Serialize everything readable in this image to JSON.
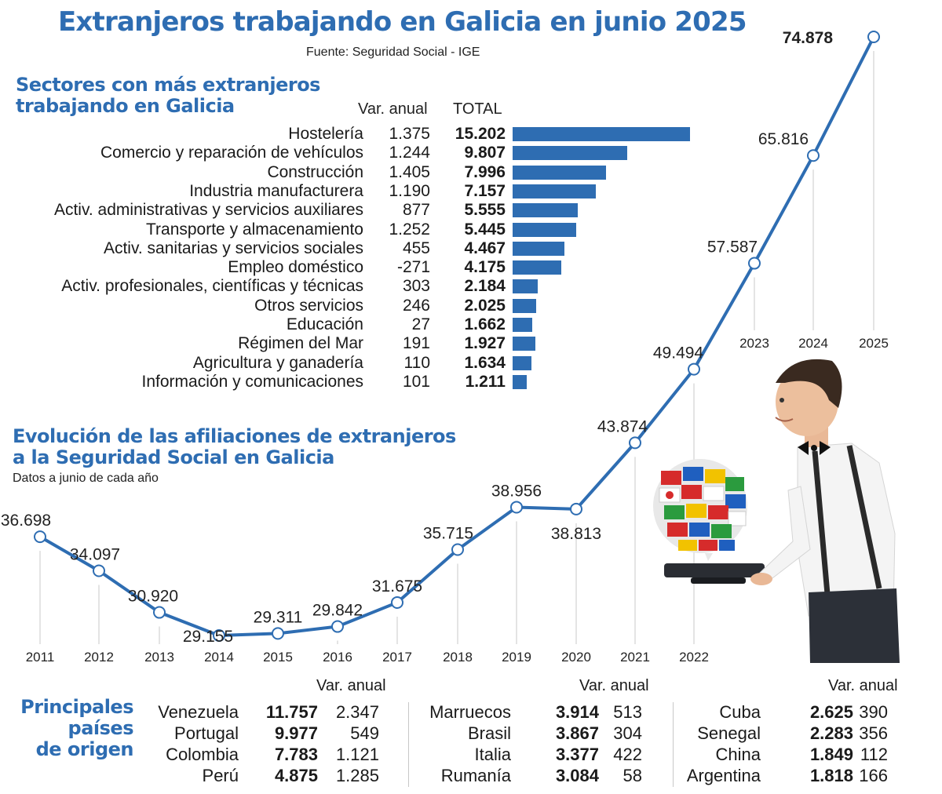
{
  "header": {
    "title": "Extranjeros trabajando en Galicia en junio 2025",
    "source": "Fuente: Seguridad Social - IGE"
  },
  "sectors": {
    "title_line1": "Sectores con más extranjeros",
    "title_line2": "trabajando en Galicia",
    "col_var": "Var. anual",
    "col_total": "TOTAL",
    "rows": [
      {
        "label": "Hostelería",
        "var": "1.375",
        "total": "15.202",
        "value": 15202
      },
      {
        "label": "Comercio y reparación de vehículos",
        "var": "1.244",
        "total": "9.807",
        "value": 9807
      },
      {
        "label": "Construcción",
        "var": "1.405",
        "total": "7.996",
        "value": 7996
      },
      {
        "label": "Industria manufacturera",
        "var": "1.190",
        "total": "7.157",
        "value": 7157
      },
      {
        "label": "Activ. administrativas y servicios auxiliares",
        "var": "877",
        "total": "5.555",
        "value": 5555
      },
      {
        "label": "Transporte y almacenamiento",
        "var": "1.252",
        "total": "5.445",
        "value": 5445
      },
      {
        "label": "Activ. sanitarias y servicios sociales",
        "var": "455",
        "total": "4.467",
        "value": 4467
      },
      {
        "label": "Empleo doméstico",
        "var": "-271",
        "total": "4.175",
        "value": 4175
      },
      {
        "label": "Activ. profesionales, científicas y técnicas",
        "var": "303",
        "total": "2.184",
        "value": 2184
      },
      {
        "label": "Otros servicios",
        "var": "246",
        "total": "2.025",
        "value": 2025
      },
      {
        "label": "Educación",
        "var": "27",
        "total": "1.662",
        "value": 1662
      },
      {
        "label": "Régimen del Mar",
        "var": "191",
        "total": "1.927",
        "value": 1927
      },
      {
        "label": "Agricultura y ganadería",
        "var": "110",
        "total": "1.634",
        "value": 1634
      },
      {
        "label": "Información y comunicaciones",
        "var": "101",
        "total": "1.211",
        "value": 1211
      }
    ]
  },
  "evolution": {
    "title_line1": "Evolución de las afiliaciones de extranjeros",
    "title_line2": "a la Seguridad Social en Galicia",
    "subtitle": "Datos a junio de cada año"
  },
  "chart_data": [
    {
      "type": "bar",
      "title": "Sectores con más extranjeros trabajando en Galicia",
      "orientation": "horizontal",
      "categories": [
        "Hostelería",
        "Comercio y reparación de vehículos",
        "Construcción",
        "Industria manufacturera",
        "Activ. administrativas y servicios auxiliares",
        "Transporte y almacenamiento",
        "Activ. sanitarias y servicios sociales",
        "Empleo doméstico",
        "Activ. profesionales, científicas y técnicas",
        "Otros servicios",
        "Educación",
        "Régimen del Mar",
        "Agricultura y ganadería",
        "Información y comunicaciones"
      ],
      "series": [
        {
          "name": "TOTAL",
          "values": [
            15202,
            9807,
            7996,
            7157,
            5555,
            5445,
            4467,
            4175,
            2184,
            2025,
            1662,
            1927,
            1634,
            1211
          ]
        },
        {
          "name": "Var. anual",
          "values": [
            1375,
            1244,
            1405,
            1190,
            877,
            1252,
            455,
            -271,
            303,
            246,
            27,
            191,
            110,
            101
          ]
        }
      ]
    },
    {
      "type": "line",
      "title": "Evolución de las afiliaciones de extranjeros a la Seguridad Social en Galicia",
      "subtitle": "Datos a junio de cada año",
      "x": [
        "2011",
        "2012",
        "2013",
        "2014",
        "2015",
        "2016",
        "2017",
        "2018",
        "2019",
        "2020",
        "2021",
        "2022",
        "2023",
        "2024",
        "2025"
      ],
      "y": [
        36698,
        34097,
        30920,
        29155,
        29311,
        29842,
        31675,
        35715,
        38956,
        38813,
        43874,
        49494,
        57587,
        65816,
        74878
      ],
      "point_labels": [
        "36.698",
        "34.097",
        "30.920",
        "29.155",
        "29.311",
        "29.842",
        "31.675",
        "35.715",
        "38.956",
        "38.813",
        "43.874",
        "49.494",
        "57.587",
        "65.816",
        "74.878"
      ],
      "ylim": [
        29000,
        75000
      ],
      "color": "#2e6db2"
    }
  ],
  "countries": {
    "title_line1": "Principales",
    "title_line2": "países",
    "title_line3": "de origen",
    "var_label": "Var. anual",
    "groups": [
      [
        {
          "name": "Venezuela",
          "total": "11.757",
          "var": "2.347"
        },
        {
          "name": "Portugal",
          "total": "9.977",
          "var": "549"
        },
        {
          "name": "Colombia",
          "total": "7.783",
          "var": "1.121"
        },
        {
          "name": "Perú",
          "total": "4.875",
          "var": "1.285"
        }
      ],
      [
        {
          "name": "Marruecos",
          "total": "3.914",
          "var": "513"
        },
        {
          "name": "Brasil",
          "total": "3.867",
          "var": "304"
        },
        {
          "name": "Italia",
          "total": "3.377",
          "var": "422"
        },
        {
          "name": "Rumanía",
          "total": "3.084",
          "var": "58"
        }
      ],
      [
        {
          "name": "Cuba",
          "total": "2.625",
          "var": "390"
        },
        {
          "name": "Senegal",
          "total": "2.283",
          "var": "356"
        },
        {
          "name": "China",
          "total": "1.849",
          "var": "112"
        },
        {
          "name": "Argentina",
          "total": "1.818",
          "var": "166"
        }
      ]
    ]
  },
  "colors": {
    "accent": "#2e6db2",
    "text": "#1a1a1a",
    "grid": "#c8c8c8"
  },
  "illustration": {
    "icon": "waiter-with-flags-icon"
  }
}
